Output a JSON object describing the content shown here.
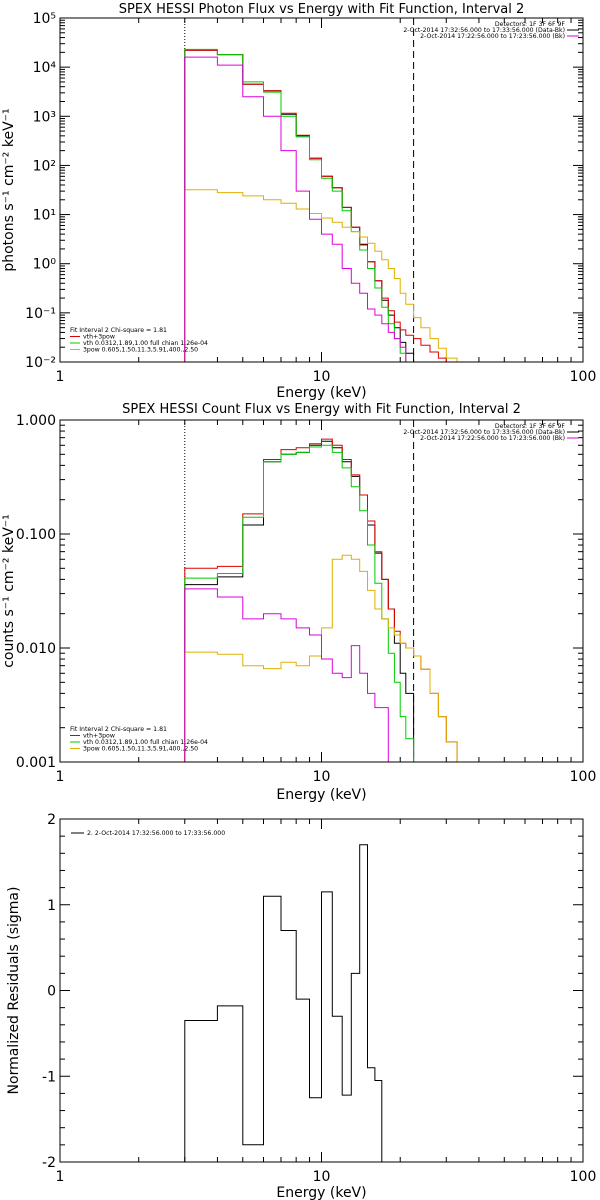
{
  "colors": {
    "black": "#000000",
    "red": "#dd0000",
    "green": "#00cc00",
    "magenta": "#dd00dd",
    "yellow": "#e0b000"
  },
  "chart_data": [
    {
      "type": "line",
      "title": "SPEX HESSI Photon Flux vs Energy with Fit Function, Interval 2",
      "xlabel": "Energy (keV)",
      "ylabel": "photons s⁻¹ cm⁻² keV⁻¹",
      "x_scale": "log",
      "y_scale": "log",
      "xlim": [
        1,
        100
      ],
      "ylim": [
        0.01,
        100000
      ],
      "x_ticks": [
        "1",
        "10",
        "100"
      ],
      "y_ticks": [
        "10⁻²",
        "10⁻¹",
        "10⁰",
        "10¹",
        "10²",
        "10³",
        "10⁴",
        "10⁵"
      ],
      "x_tick_values": [
        1,
        10,
        100
      ],
      "y_tick_values": [
        0.01,
        0.1,
        1,
        10,
        100,
        1000,
        10000,
        100000
      ],
      "vlines": [
        {
          "x": 3.0,
          "style": "dotted"
        },
        {
          "x": 22.5,
          "style": "dashed"
        }
      ],
      "legend_top": [
        "Detectors: 1F 3F 6F 9F",
        "2-Oct-2014 17:32:56.000 to 17:33:56.000 (Data-Bk)",
        "2-Oct-2014 17:22:56.000 to 17:23:56.000 (Bk)"
      ],
      "legend_bottom": [
        "Fit Interval 2   Chi-square = 1.81",
        "vth+3pow",
        "vth 0.0312,1.89,1.00  full chian 1.26e-04",
        "3pow 0.605,1.50,11.3,5.91,400.,2.50"
      ],
      "edges": [
        3.0,
        4.0,
        5.0,
        6.0,
        7.0,
        8.0,
        9.0,
        10.0,
        11.0,
        12.0,
        13.0,
        14.0,
        15.0,
        16.0,
        17.0,
        18.0,
        19.0,
        20.0,
        21.0,
        22.5,
        24.0,
        26.0,
        28.0,
        30.0,
        33.0
      ],
      "series": [
        {
          "name": "Data-Bk",
          "color": "black",
          "values": [
            22000,
            18000,
            4500,
            3300,
            1100,
            400,
            140,
            60,
            35,
            14,
            5.5,
            2.5,
            1.1,
            0.45,
            0.18,
            0.09,
            0.05,
            0.025,
            0.015,
            null,
            null,
            null,
            null,
            null
          ]
        },
        {
          "name": "vth+3pow",
          "color": "red",
          "values": [
            22000,
            18000,
            4500,
            3300,
            1150,
            410,
            140,
            60,
            35,
            14,
            5.5,
            2.4,
            1.1,
            0.45,
            0.2,
            0.11,
            0.065,
            0.045,
            0.035,
            0.03,
            0.022,
            0.016,
            0.012,
            0.009
          ]
        },
        {
          "name": "vth",
          "color": "green",
          "values": [
            23000,
            18000,
            5000,
            3100,
            1000,
            380,
            130,
            55,
            30,
            12,
            4.5,
            1.9,
            0.8,
            0.32,
            0.13,
            0.06,
            0.03,
            0.015,
            0.01,
            null,
            null,
            null,
            null,
            null
          ]
        },
        {
          "name": "3pow",
          "color": "yellow",
          "values": [
            32,
            28,
            24,
            20,
            17,
            13,
            10.5,
            8.5,
            7,
            5.5,
            4.5,
            3.5,
            2.6,
            1.8,
            1.2,
            0.8,
            0.5,
            0.25,
            0.15,
            0.08,
            0.05,
            0.03,
            0.019,
            0.012
          ]
        },
        {
          "name": "Bk",
          "color": "magenta",
          "values": [
            16000,
            11000,
            2500,
            1000,
            200,
            30,
            8,
            4,
            2.5,
            0.8,
            0.4,
            0.25,
            0.12,
            0.09,
            0.06,
            0.04,
            0.03,
            0.02,
            null,
            null,
            null,
            null,
            null,
            null
          ]
        }
      ]
    },
    {
      "type": "line",
      "title": "SPEX HESSI Count Flux vs Energy with Fit Function, Interval 2",
      "xlabel": "Energy (keV)",
      "ylabel": "counts s⁻¹ cm⁻² keV⁻¹",
      "x_scale": "log",
      "y_scale": "log",
      "xlim": [
        1,
        100
      ],
      "ylim": [
        0.001,
        1.0
      ],
      "x_ticks": [
        "1",
        "10",
        "100"
      ],
      "y_ticks": [
        "0.001",
        "0.010",
        "0.100",
        "1.000"
      ],
      "x_tick_values": [
        1,
        10,
        100
      ],
      "y_tick_values": [
        0.001,
        0.01,
        0.1,
        1.0
      ],
      "vlines": [
        {
          "x": 3.0,
          "style": "dotted"
        },
        {
          "x": 22.5,
          "style": "dashed"
        }
      ],
      "legend_top": [
        "Detectors: 1F 3F 6F 9F",
        "2-Oct-2014 17:32:56.000 to 17:33:56.000 (Data-Bk)",
        "2-Oct-2014 17:22:56.000 to 17:23:56.000 (Bk)"
      ],
      "legend_bottom": [
        "Fit Interval 2   Chi-square = 1.81",
        "vth+3pow",
        "vth 0.0312,1.89,1.00  full chian 1.26e-04",
        "3pow 0.605,1.50,11.3,5.91,400.,2.50"
      ],
      "edges": [
        3.0,
        4.0,
        5.0,
        6.0,
        7.0,
        8.0,
        9.0,
        10.0,
        11.0,
        12.0,
        13.0,
        14.0,
        15.0,
        16.0,
        17.0,
        18.0,
        19.0,
        20.0,
        21.0,
        22.5,
        24.0,
        26.0,
        28.0,
        30.0,
        33.0
      ],
      "series": [
        {
          "name": "Data-Bk",
          "color": "black",
          "values": [
            0.036,
            0.042,
            0.12,
            0.43,
            0.5,
            0.52,
            0.6,
            0.65,
            0.57,
            0.43,
            0.32,
            0.22,
            0.12,
            0.068,
            0.04,
            0.022,
            0.011,
            0.006,
            0.004,
            null,
            null,
            null,
            null,
            null
          ]
        },
        {
          "name": "vth+3pow",
          "color": "red",
          "values": [
            0.05,
            0.052,
            0.15,
            0.45,
            0.55,
            0.57,
            0.62,
            0.68,
            0.6,
            0.45,
            0.33,
            0.22,
            0.13,
            0.07,
            0.04,
            0.022,
            0.014,
            0.011,
            0.01,
            0.0085,
            0.0065,
            0.004,
            0.0025,
            0.0015
          ]
        },
        {
          "name": "vth",
          "color": "green",
          "values": [
            0.041,
            0.045,
            0.14,
            0.43,
            0.5,
            0.52,
            0.58,
            0.6,
            0.52,
            0.38,
            0.26,
            0.16,
            0.08,
            0.037,
            0.018,
            0.009,
            0.005,
            0.0025,
            0.0016,
            null,
            null,
            null,
            null,
            null
          ]
        },
        {
          "name": "3pow",
          "color": "yellow",
          "values": [
            0.0092,
            0.0088,
            0.007,
            0.0066,
            0.0075,
            0.007,
            0.0085,
            0.015,
            0.06,
            0.065,
            0.06,
            0.047,
            0.032,
            0.022,
            0.018,
            0.015,
            0.013,
            0.011,
            0.01,
            0.0085,
            0.0065,
            0.004,
            0.0025,
            0.0015
          ]
        },
        {
          "name": "Bk",
          "color": "magenta",
          "values": [
            0.033,
            0.028,
            0.018,
            0.02,
            0.018,
            0.015,
            0.013,
            0.008,
            0.006,
            0.0055,
            0.0105,
            0.006,
            0.004,
            0.003,
            0.003,
            null,
            null,
            null,
            null,
            null,
            null,
            null,
            null,
            null
          ]
        }
      ]
    },
    {
      "type": "line",
      "title": "",
      "xlabel": "Energy (keV)",
      "ylabel": "Normalized Residuals (sigma)",
      "x_scale": "log",
      "y_scale": "linear",
      "xlim": [
        1,
        100
      ],
      "ylim": [
        -2,
        2
      ],
      "x_ticks": [
        "1",
        "10",
        "100"
      ],
      "y_ticks": [
        "-2",
        "-1",
        "0",
        "1",
        "2"
      ],
      "x_tick_values": [
        1,
        10,
        100
      ],
      "y_tick_values": [
        -2,
        -1,
        0,
        1,
        2
      ],
      "legend": [
        "2.  2-Oct-2014 17:32:56.000 to 17:33:56.000"
      ],
      "edges": [
        3.0,
        4.0,
        5.0,
        6.0,
        7.0,
        8.0,
        9.0,
        10.0,
        11.0,
        12.0,
        13.0,
        14.0,
        15.0,
        16.0,
        17.0,
        18.0,
        19.0,
        20.0,
        21.0,
        22.5
      ],
      "series": [
        {
          "name": "",
          "color": "black",
          "values": [
            -0.35,
            -0.18,
            -1.8,
            1.1,
            0.7,
            -0.1,
            -1.25,
            1.15,
            -0.3,
            -1.22,
            0.2,
            1.7,
            -0.9,
            -1.05,
            -2.0,
            -2.0,
            -2.0,
            -2.0,
            -2.0
          ]
        }
      ]
    }
  ]
}
